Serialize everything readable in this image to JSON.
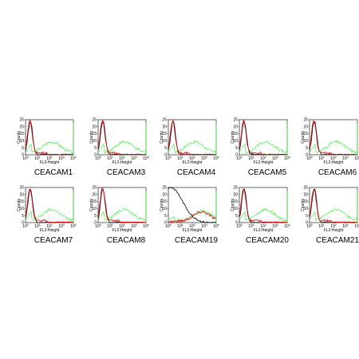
{
  "chart_data": {
    "type": "line",
    "panels": [
      {
        "title": "CEACAM1"
      },
      {
        "title": "CEACAM3"
      },
      {
        "title": "CEACAM4"
      },
      {
        "title": "CEACAM5"
      },
      {
        "title": "CEACAM6"
      },
      {
        "title": "CEACAM7"
      },
      {
        "title": "CEACAM8"
      },
      {
        "title": "CEACAM19"
      },
      {
        "title": "CEACAM20"
      },
      {
        "title": "CEACAM21"
      }
    ],
    "xlabel": "FL2-Height",
    "ylabel": "Counts",
    "x_scale": "log",
    "xlim": [
      1,
      10000
    ],
    "ylim": [
      0,
      25
    ],
    "x_ticks": [
      "10",
      "10",
      "10",
      "10",
      "10"
    ],
    "x_tick_exponents": [
      "0",
      "1",
      "2",
      "3",
      "4"
    ],
    "y_ticks": [
      "0",
      "5",
      "10",
      "15",
      "20",
      "25"
    ],
    "series_colors": {
      "control": "#000000",
      "treated": "#e00000",
      "positive": "#33ee33"
    }
  }
}
